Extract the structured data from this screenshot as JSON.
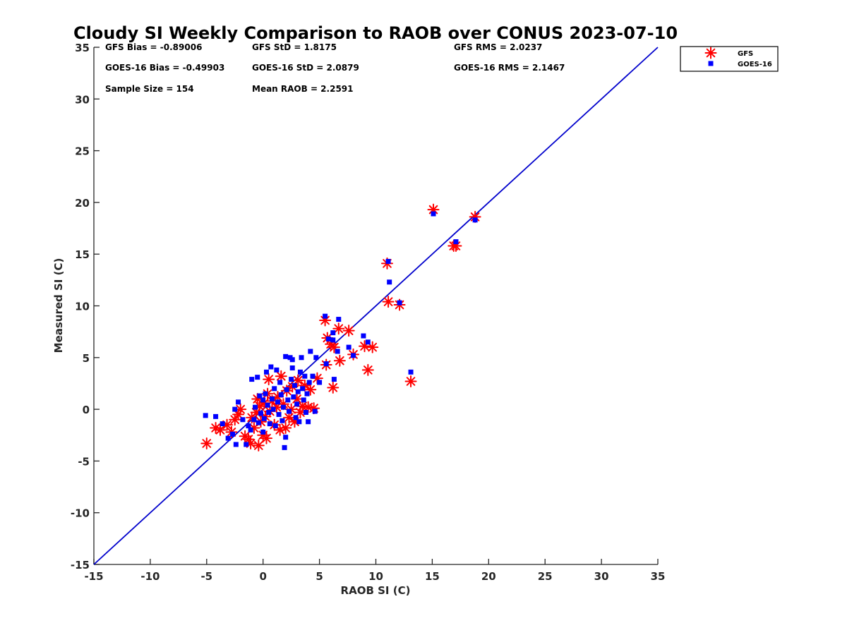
{
  "chart_data": {
    "type": "scatter",
    "title": "Cloudy SI Weekly Comparison to RAOB over CONUS 2023-07-10",
    "xlabel": "RAOB SI (C)",
    "ylabel": "Measured SI (C)",
    "xlim": [
      -15,
      35
    ],
    "ylim": [
      -15,
      35
    ],
    "xticks": [
      "-15",
      "-10",
      "-5",
      "0",
      "5",
      "10",
      "15",
      "20",
      "25",
      "30",
      "35"
    ],
    "yticks": [
      "-15",
      "-10",
      "-5",
      "0",
      "5",
      "10",
      "15",
      "20",
      "25",
      "30",
      "35"
    ],
    "grid": false,
    "legend_position": "outside-top-right",
    "reference_line": {
      "x": [
        -15,
        35
      ],
      "y": [
        -15,
        35
      ],
      "color": "#0000cc"
    },
    "stats": [
      {
        "text": "GFS Bias = -0.89006"
      },
      {
        "text": "GFS StD = 1.8175"
      },
      {
        "text": "GFS RMS = 2.0237"
      },
      {
        "text": "GOES-16 Bias = -0.49903"
      },
      {
        "text": "GOES-16 StD = 2.0879"
      },
      {
        "text": "GOES-16 RMS = 2.1467"
      },
      {
        "text": "Sample Size = 154"
      },
      {
        "text": "Mean RAOB = 2.2591"
      }
    ],
    "series": [
      {
        "name": "GFS",
        "marker": "asterisk",
        "color": "#ff0000",
        "points": [
          [
            -5.0,
            -3.3
          ],
          [
            -4.2,
            -1.8
          ],
          [
            -3.8,
            -2.0
          ],
          [
            -3.2,
            -1.5
          ],
          [
            -2.8,
            -2.2
          ],
          [
            -2.5,
            -1.0
          ],
          [
            -2.2,
            -0.5
          ],
          [
            -2.0,
            0.0
          ],
          [
            -1.6,
            -2.6
          ],
          [
            -1.3,
            -2.9
          ],
          [
            -1.1,
            -3.3
          ],
          [
            -1.0,
            -0.8
          ],
          [
            -0.8,
            -1.8
          ],
          [
            -0.6,
            -0.3
          ],
          [
            -0.5,
            1.0
          ],
          [
            -0.4,
            -3.5
          ],
          [
            -0.3,
            0.3
          ],
          [
            -0.2,
            -1.2
          ],
          [
            0.0,
            -2.5
          ],
          [
            0.1,
            0.6
          ],
          [
            0.2,
            -0.7
          ],
          [
            0.3,
            -2.8
          ],
          [
            0.4,
            1.5
          ],
          [
            0.5,
            2.9
          ],
          [
            0.6,
            -0.2
          ],
          [
            0.8,
            0.8
          ],
          [
            1.0,
            -1.5
          ],
          [
            1.2,
            0.2
          ],
          [
            1.3,
            1.2
          ],
          [
            1.5,
            -2.0
          ],
          [
            1.6,
            3.2
          ],
          [
            1.8,
            0.5
          ],
          [
            2.0,
            -1.8
          ],
          [
            2.1,
            1.8
          ],
          [
            2.3,
            -0.8
          ],
          [
            2.5,
            0.0
          ],
          [
            2.6,
            2.2
          ],
          [
            2.8,
            -1.2
          ],
          [
            3.0,
            1.0
          ],
          [
            3.1,
            2.8
          ],
          [
            3.3,
            -0.3
          ],
          [
            3.5,
            0.3
          ],
          [
            3.7,
            2.3
          ],
          [
            4.0,
            0.2
          ],
          [
            4.2,
            1.9
          ],
          [
            4.5,
            0.1
          ],
          [
            4.8,
            3.0
          ],
          [
            5.5,
            8.6
          ],
          [
            5.6,
            4.3
          ],
          [
            5.7,
            6.9
          ],
          [
            6.0,
            6.3
          ],
          [
            6.2,
            2.1
          ],
          [
            6.3,
            6.0
          ],
          [
            6.7,
            7.8
          ],
          [
            6.8,
            4.7
          ],
          [
            7.6,
            7.6
          ],
          [
            8.0,
            5.3
          ],
          [
            9.0,
            6.1
          ],
          [
            9.3,
            3.8
          ],
          [
            9.7,
            6.0
          ],
          [
            11.0,
            14.1
          ],
          [
            11.1,
            10.4
          ],
          [
            12.1,
            10.1
          ],
          [
            13.1,
            2.7
          ],
          [
            15.1,
            19.3
          ],
          [
            16.9,
            15.8
          ],
          [
            17.1,
            15.8
          ],
          [
            18.8,
            18.6
          ]
        ]
      },
      {
        "name": "GOES-16",
        "marker": "square",
        "color": "#0000ff",
        "points": [
          [
            -5.1,
            -0.6
          ],
          [
            -4.2,
            -0.7
          ],
          [
            -3.6,
            -1.4
          ],
          [
            -3.1,
            -2.8
          ],
          [
            -2.7,
            -2.4
          ],
          [
            -2.4,
            -3.4
          ],
          [
            -2.5,
            0.0
          ],
          [
            -2.2,
            0.7
          ],
          [
            -1.8,
            -1.0
          ],
          [
            -1.5,
            -3.4
          ],
          [
            -1.3,
            -1.6
          ],
          [
            -1.1,
            -2.0
          ],
          [
            -1.0,
            2.9
          ],
          [
            -0.8,
            -1.0
          ],
          [
            -0.7,
            0.2
          ],
          [
            -0.5,
            3.1
          ],
          [
            -0.4,
            -1.3
          ],
          [
            -0.3,
            1.3
          ],
          [
            -0.2,
            -0.4
          ],
          [
            0.0,
            0.9
          ],
          [
            0.0,
            -2.2
          ],
          [
            0.1,
            -0.9
          ],
          [
            0.2,
            1.5
          ],
          [
            0.3,
            3.6
          ],
          [
            0.4,
            0.4
          ],
          [
            0.5,
            -0.3
          ],
          [
            0.6,
            -1.4
          ],
          [
            0.7,
            4.1
          ],
          [
            0.8,
            1.0
          ],
          [
            0.9,
            0.0
          ],
          [
            1.0,
            2.0
          ],
          [
            1.1,
            -1.6
          ],
          [
            1.2,
            3.8
          ],
          [
            1.3,
            0.7
          ],
          [
            1.4,
            -0.5
          ],
          [
            1.5,
            2.6
          ],
          [
            1.6,
            1.4
          ],
          [
            1.7,
            -1.1
          ],
          [
            1.8,
            0.2
          ],
          [
            1.9,
            -3.7
          ],
          [
            2.0,
            -2.7
          ],
          [
            2.0,
            5.1
          ],
          [
            2.1,
            1.9
          ],
          [
            2.2,
            0.9
          ],
          [
            2.3,
            -0.2
          ],
          [
            2.4,
            5.0
          ],
          [
            2.5,
            2.9
          ],
          [
            2.6,
            4.0
          ],
          [
            2.6,
            4.8
          ],
          [
            2.7,
            1.2
          ],
          [
            2.8,
            2.3
          ],
          [
            2.9,
            -0.8
          ],
          [
            3.0,
            0.5
          ],
          [
            3.1,
            1.7
          ],
          [
            3.2,
            -1.2
          ],
          [
            3.3,
            3.6
          ],
          [
            3.4,
            5.0
          ],
          [
            3.5,
            2.0
          ],
          [
            3.6,
            0.9
          ],
          [
            3.7,
            3.2
          ],
          [
            3.8,
            -0.3
          ],
          [
            3.9,
            1.5
          ],
          [
            4.0,
            -1.2
          ],
          [
            4.1,
            2.6
          ],
          [
            4.2,
            5.6
          ],
          [
            4.4,
            3.2
          ],
          [
            4.6,
            -0.2
          ],
          [
            4.7,
            5.0
          ],
          [
            5.0,
            2.6
          ],
          [
            5.5,
            9.0
          ],
          [
            5.6,
            4.4
          ],
          [
            5.8,
            6.8
          ],
          [
            6.2,
            6.7
          ],
          [
            6.2,
            7.4
          ],
          [
            6.3,
            2.9
          ],
          [
            6.6,
            5.6
          ],
          [
            6.7,
            8.7
          ],
          [
            7.6,
            6.0
          ],
          [
            8.0,
            5.2
          ],
          [
            8.9,
            7.1
          ],
          [
            9.3,
            6.5
          ],
          [
            11.1,
            14.3
          ],
          [
            11.2,
            12.3
          ],
          [
            12.1,
            10.3
          ],
          [
            13.1,
            3.6
          ],
          [
            15.1,
            18.9
          ],
          [
            17.1,
            16.2
          ],
          [
            18.8,
            18.3
          ]
        ]
      }
    ]
  }
}
